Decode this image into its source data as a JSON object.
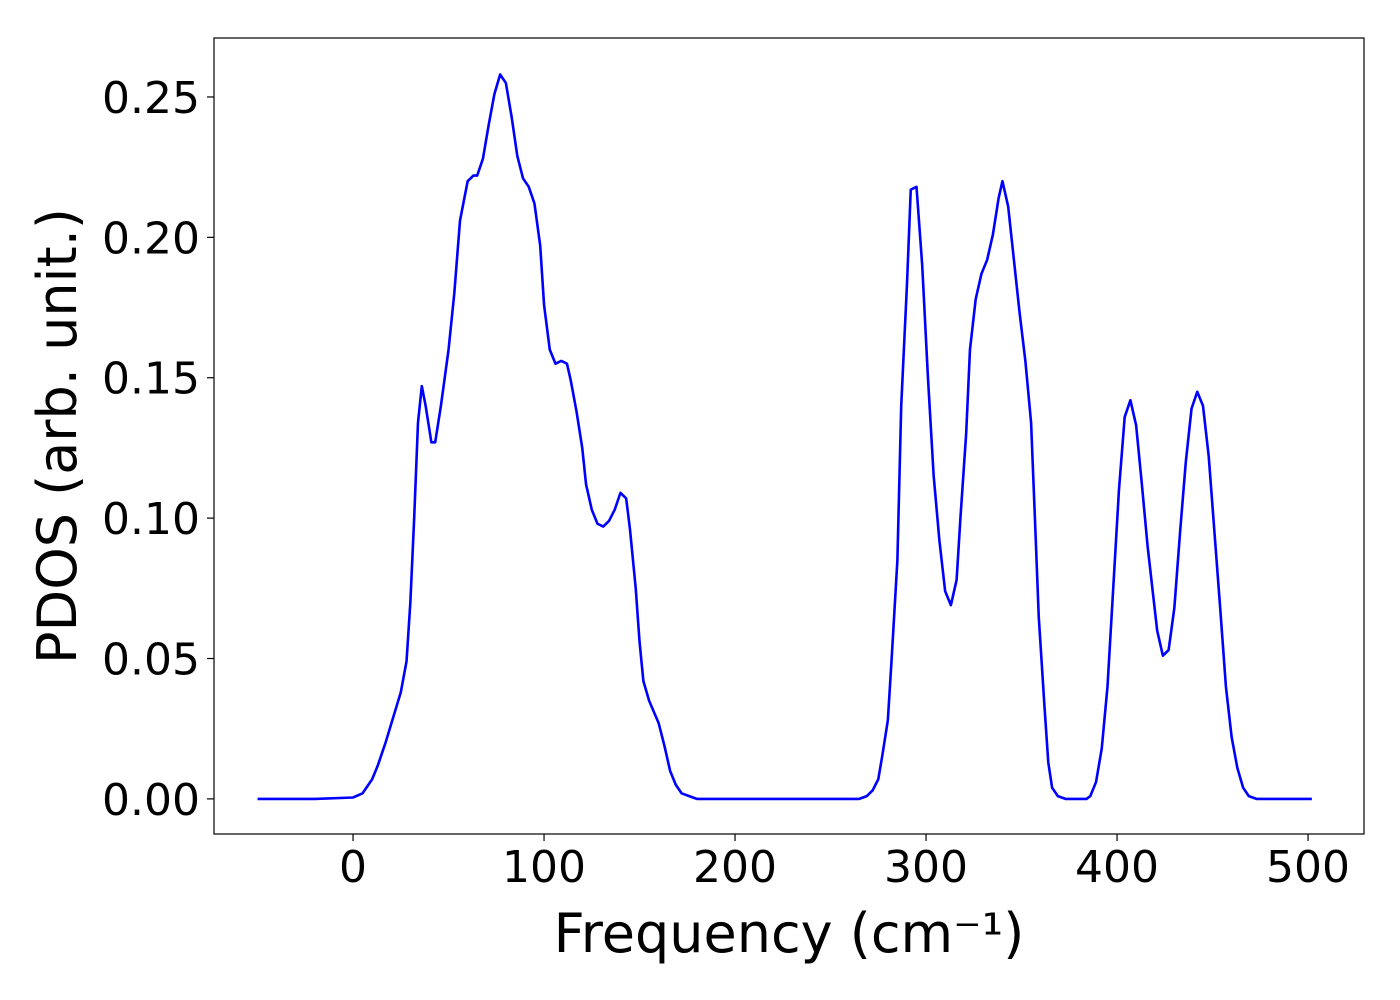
{
  "chart_data": {
    "type": "line",
    "xlabel": "Frequency (cm⁻¹)",
    "ylabel": "PDOS (arb. unit.)",
    "color": "#0000ff",
    "x": [
      -50,
      -20,
      0,
      5,
      10,
      13,
      17,
      21,
      25,
      28,
      30,
      32,
      34,
      36,
      38,
      41,
      43,
      46,
      50,
      53,
      56,
      60,
      63,
      65,
      68,
      71,
      74,
      77,
      80,
      83,
      86,
      89,
      92,
      95,
      98,
      100,
      103,
      106,
      109,
      112,
      114,
      117,
      120,
      122,
      125,
      128,
      131,
      134,
      137,
      140,
      143,
      145,
      148,
      150,
      152,
      155,
      160,
      163,
      166,
      169,
      172,
      176,
      180,
      265,
      269,
      272,
      275,
      277,
      280,
      282,
      285,
      287,
      290,
      292,
      295,
      298,
      301,
      304,
      307,
      310,
      313,
      316,
      318,
      321,
      323,
      326,
      329,
      332,
      335,
      338,
      340,
      343,
      346,
      349,
      352,
      355,
      357,
      359,
      362,
      364,
      366,
      369,
      373,
      384,
      386,
      389,
      392,
      395,
      398,
      401,
      404,
      407,
      410,
      413,
      416,
      419,
      421,
      424,
      427,
      430,
      433,
      436,
      439,
      442,
      445,
      448,
      451,
      454,
      457,
      460,
      463,
      466,
      469,
      473,
      502
    ],
    "values": [
      0,
      0,
      0.0005,
      0.002,
      0.007,
      0.012,
      0.02,
      0.029,
      0.038,
      0.049,
      0.07,
      0.1,
      0.134,
      0.147,
      0.14,
      0.127,
      0.127,
      0.14,
      0.16,
      0.18,
      0.206,
      0.22,
      0.222,
      0.222,
      0.228,
      0.24,
      0.251,
      0.258,
      0.255,
      0.243,
      0.229,
      0.221,
      0.218,
      0.212,
      0.197,
      0.176,
      0.16,
      0.155,
      0.156,
      0.155,
      0.149,
      0.138,
      0.125,
      0.112,
      0.103,
      0.098,
      0.097,
      0.099,
      0.103,
      0.109,
      0.107,
      0.096,
      0.075,
      0.056,
      0.042,
      0.035,
      0.027,
      0.019,
      0.01,
      0.005,
      0.002,
      0.001,
      0,
      0,
      0.001,
      0.003,
      0.007,
      0.015,
      0.028,
      0.05,
      0.085,
      0.14,
      0.183,
      0.217,
      0.218,
      0.19,
      0.15,
      0.115,
      0.092,
      0.074,
      0.069,
      0.078,
      0.1,
      0.13,
      0.16,
      0.178,
      0.187,
      0.192,
      0.201,
      0.214,
      0.22,
      0.211,
      0.192,
      0.173,
      0.156,
      0.134,
      0.1,
      0.065,
      0.033,
      0.013,
      0.004,
      0.001,
      0,
      0,
      0.001,
      0.006,
      0.018,
      0.04,
      0.075,
      0.11,
      0.136,
      0.142,
      0.133,
      0.112,
      0.09,
      0.072,
      0.06,
      0.051,
      0.053,
      0.068,
      0.095,
      0.12,
      0.139,
      0.145,
      0.14,
      0.122,
      0.095,
      0.068,
      0.04,
      0.022,
      0.011,
      0.004,
      0.001,
      0,
      0
    ],
    "xlim": [
      -72.8,
      529.3
    ],
    "ylim": [
      -0.0125,
      0.271
    ],
    "xticks": [
      0,
      100,
      200,
      300,
      400,
      500
    ],
    "yticks": [
      {
        "value": 0,
        "label": "0.00"
      },
      {
        "value": 0.05,
        "label": "0.05"
      },
      {
        "value": 0.1,
        "label": "0.10"
      },
      {
        "value": 0.15,
        "label": "0.15"
      },
      {
        "value": 0.2,
        "label": "0.20"
      },
      {
        "value": 0.25,
        "label": "0.25"
      }
    ],
    "grid": false
  }
}
